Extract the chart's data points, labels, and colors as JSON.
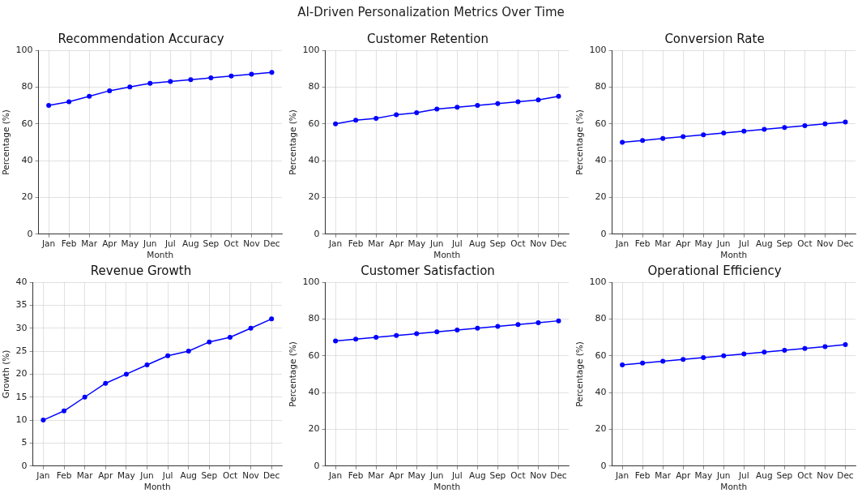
{
  "chart_data": [
    {
      "type": "other",
      "title": "AI-Driven Personalization Metrics Over Time"
    },
    {
      "type": "line",
      "title": "Recommendation Accuracy",
      "xlabel": "Month",
      "ylabel": "Percentage (%)",
      "categories": [
        "Jan",
        "Feb",
        "Mar",
        "Apr",
        "May",
        "Jun",
        "Jul",
        "Aug",
        "Sep",
        "Oct",
        "Nov",
        "Dec"
      ],
      "series": [
        {
          "color": "#0000ff",
          "values": [
            70,
            72,
            75,
            78,
            80,
            82,
            83,
            84,
            85,
            86,
            87,
            88
          ]
        }
      ],
      "ylim": [
        0,
        100
      ],
      "yticks": [
        0,
        20,
        40,
        60,
        80,
        100
      ],
      "grid": true,
      "marker": "circle",
      "line_style": "solid"
    },
    {
      "type": "line",
      "title": "Customer Retention",
      "xlabel": "Month",
      "ylabel": "Percentage (%)",
      "categories": [
        "Jan",
        "Feb",
        "Mar",
        "Apr",
        "May",
        "Jun",
        "Jul",
        "Aug",
        "Sep",
        "Oct",
        "Nov",
        "Dec"
      ],
      "series": [
        {
          "color": "#0000ff",
          "values": [
            60,
            62,
            63,
            65,
            66,
            68,
            69,
            70,
            71,
            72,
            73,
            75
          ]
        }
      ],
      "ylim": [
        0,
        100
      ],
      "yticks": [
        0,
        20,
        40,
        60,
        80,
        100
      ],
      "grid": true,
      "marker": "circle",
      "line_style": "solid"
    },
    {
      "type": "line",
      "title": "Conversion Rate",
      "xlabel": "Month",
      "ylabel": "Percentage (%)",
      "categories": [
        "Jan",
        "Feb",
        "Mar",
        "Apr",
        "May",
        "Jun",
        "Jul",
        "Aug",
        "Sep",
        "Oct",
        "Nov",
        "Dec"
      ],
      "series": [
        {
          "color": "#0000ff",
          "values": [
            50,
            51,
            52,
            53,
            54,
            55,
            56,
            57,
            58,
            59,
            60,
            61
          ]
        }
      ],
      "ylim": [
        0,
        100
      ],
      "yticks": [
        0,
        20,
        40,
        60,
        80,
        100
      ],
      "grid": true,
      "marker": "circle",
      "line_style": "solid"
    },
    {
      "type": "line",
      "title": "Revenue Growth",
      "xlabel": "Month",
      "ylabel": "Growth (%)",
      "categories": [
        "Jan",
        "Feb",
        "Mar",
        "Apr",
        "May",
        "Jun",
        "Jul",
        "Aug",
        "Sep",
        "Oct",
        "Nov",
        "Dec"
      ],
      "series": [
        {
          "color": "#0000ff",
          "values": [
            10,
            12,
            15,
            18,
            20,
            22,
            24,
            25,
            27,
            28,
            30,
            32
          ]
        }
      ],
      "ylim": [
        0,
        40
      ],
      "yticks": [
        0,
        5,
        10,
        15,
        20,
        25,
        30,
        35,
        40
      ],
      "grid": true,
      "marker": "circle",
      "line_style": "solid"
    },
    {
      "type": "line",
      "title": "Customer Satisfaction",
      "xlabel": "Month",
      "ylabel": "Percentage (%)",
      "categories": [
        "Jan",
        "Feb",
        "Mar",
        "Apr",
        "May",
        "Jun",
        "Jul",
        "Aug",
        "Sep",
        "Oct",
        "Nov",
        "Dec"
      ],
      "series": [
        {
          "color": "#0000ff",
          "values": [
            68,
            69,
            70,
            71,
            72,
            73,
            74,
            75,
            76,
            77,
            78,
            79
          ]
        }
      ],
      "ylim": [
        0,
        100
      ],
      "yticks": [
        0,
        20,
        40,
        60,
        80,
        100
      ],
      "grid": true,
      "marker": "circle",
      "line_style": "solid"
    },
    {
      "type": "line",
      "title": "Operational Efficiency",
      "xlabel": "Month",
      "ylabel": "Percentage (%)",
      "categories": [
        "Jan",
        "Feb",
        "Mar",
        "Apr",
        "May",
        "Jun",
        "Jul",
        "Aug",
        "Sep",
        "Oct",
        "Nov",
        "Dec"
      ],
      "series": [
        {
          "color": "#0000ff",
          "values": [
            55,
            56,
            57,
            58,
            59,
            60,
            61,
            62,
            63,
            64,
            65,
            66
          ]
        }
      ],
      "ylim": [
        0,
        100
      ],
      "yticks": [
        0,
        20,
        40,
        60,
        80,
        100
      ],
      "grid": true,
      "marker": "circle",
      "line_style": "solid"
    }
  ]
}
